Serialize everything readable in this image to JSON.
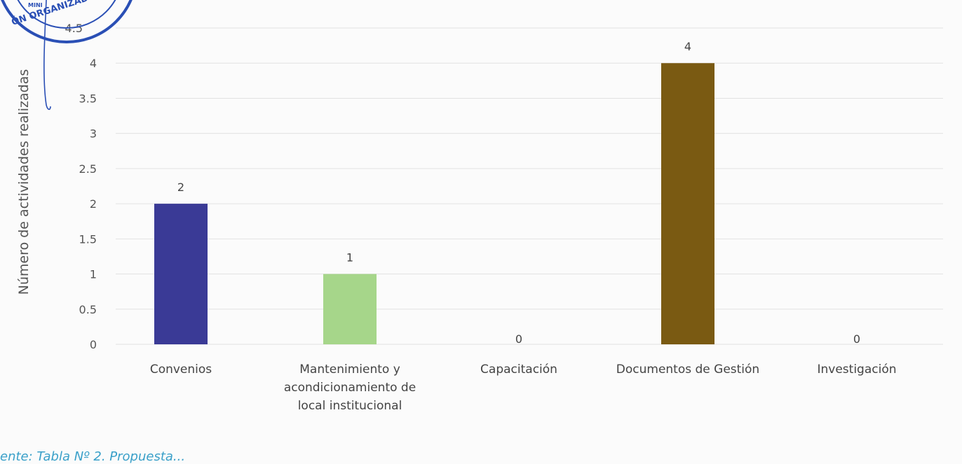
{
  "chart_data": {
    "type": "bar",
    "title": "",
    "xlabel": "",
    "ylabel": "Número de actividades realizadas",
    "categories": [
      [
        "Convenios"
      ],
      [
        "Mantenimiento y",
        "acondicionamiento de",
        "local institucional"
      ],
      [
        "Capacitación"
      ],
      [
        "Documentos de Gestión"
      ],
      [
        "Investigación"
      ]
    ],
    "values": [
      2,
      1,
      0,
      4,
      0
    ],
    "data_labels": [
      "2",
      "1",
      "0",
      "4",
      "0"
    ],
    "colors": [
      "#3a3a96",
      "#a6d68a",
      "#b8b8b8",
      "#7a5a12",
      "#b8b8b8"
    ],
    "ylim": [
      0,
      4.5
    ],
    "yticks": [
      "0",
      "0.5",
      "1",
      "1.5",
      "2",
      "2.5",
      "3",
      "3.5",
      "4",
      "4.5"
    ],
    "grid": true,
    "legend": "none"
  },
  "stamp": {
    "text": "ÓN ORGANIZADO",
    "small_text": "MINI"
  },
  "footer": {
    "text": "ente: Tabla Nº 2. Propuesta..."
  }
}
